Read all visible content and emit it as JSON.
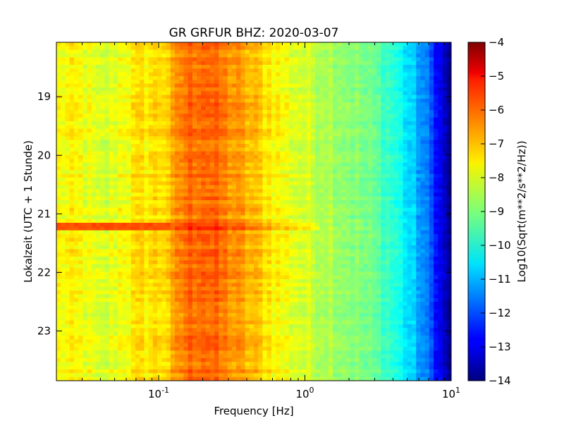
{
  "chart_data": {
    "type": "heatmap",
    "title": "GR GRFUR BHZ: 2020-03-07",
    "xlabel": "Frequency [Hz]",
    "ylabel": "Lokalzeit (UTC + 1 Stunde)",
    "x_scale": "log",
    "xlim": [
      0.02,
      10
    ],
    "x_ticks": [
      {
        "value": 0.1,
        "base": "10",
        "exp": "-1"
      },
      {
        "value": 1,
        "base": "10",
        "exp": "0"
      },
      {
        "value": 10,
        "base": "10",
        "exp": "1"
      }
    ],
    "ylim": [
      18.07,
      23.85
    ],
    "y_ticks": [
      19,
      20,
      21,
      22,
      23
    ],
    "colorbar": {
      "label": "Log10(Sqrt(m**2/s**2/Hz))",
      "min": -14,
      "max": -4,
      "ticks": [
        -4,
        -5,
        -6,
        -7,
        -8,
        -9,
        -10,
        -11,
        -12,
        -13,
        -14
      ],
      "colormap": "jet"
    },
    "spectrum_profile": {
      "frequency_hz": [
        0.02,
        0.03,
        0.04,
        0.06,
        0.08,
        0.1,
        0.12,
        0.15,
        0.2,
        0.3,
        0.5,
        0.7,
        1.0,
        1.5,
        2.0,
        3.0,
        4.0,
        5.0,
        6.0,
        7.0,
        8.0,
        9.0,
        10.0
      ],
      "log10_amplitude": [
        -7.8,
        -7.8,
        -8.3,
        -7.7,
        -7.5,
        -7.4,
        -7.2,
        -6.4,
        -6.1,
        -6.6,
        -7.3,
        -7.8,
        -8.2,
        -8.5,
        -8.8,
        -9.3,
        -9.8,
        -10.5,
        -11.1,
        -11.8,
        -12.5,
        -13.4,
        -13.9
      ]
    },
    "events": [
      {
        "time": 21.2,
        "freq_max_hz": 0.12,
        "log10_amplitude": -6.0
      }
    ]
  }
}
